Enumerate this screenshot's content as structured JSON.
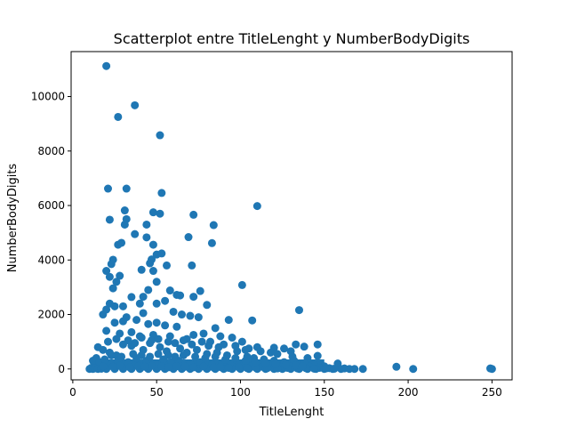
{
  "chart_data": {
    "type": "scatter",
    "title": "Scatterplot entre TitleLenght y NumberBodyDigits",
    "xlabel": "TitleLenght",
    "ylabel": "NumberBodyDigits",
    "xlim": [
      -1,
      262
    ],
    "ylim": [
      -400,
      11650
    ],
    "xticks": [
      0,
      50,
      100,
      150,
      200,
      250
    ],
    "yticks": [
      0,
      2000,
      4000,
      6000,
      8000,
      10000
    ],
    "grid": false,
    "legend": "none",
    "color": "#1f77b4",
    "points": [
      [
        20,
        11120
      ],
      [
        37,
        9680
      ],
      [
        27,
        9250
      ],
      [
        52,
        8580
      ],
      [
        21,
        6620
      ],
      [
        32,
        6620
      ],
      [
        53,
        6460
      ],
      [
        110,
        5980
      ],
      [
        22,
        5480
      ],
      [
        31,
        5820
      ],
      [
        32,
        5500
      ],
      [
        31,
        5300
      ],
      [
        48,
        5750
      ],
      [
        52,
        5700
      ],
      [
        44,
        5300
      ],
      [
        72,
        5660
      ],
      [
        84,
        5280
      ],
      [
        37,
        4950
      ],
      [
        44,
        4830
      ],
      [
        27,
        4560
      ],
      [
        29,
        4630
      ],
      [
        48,
        4560
      ],
      [
        69,
        4840
      ],
      [
        83,
        4620
      ],
      [
        24,
        4010
      ],
      [
        23,
        3850
      ],
      [
        20,
        3600
      ],
      [
        22,
        3380
      ],
      [
        26,
        3200
      ],
      [
        28,
        3420
      ],
      [
        47,
        4020
      ],
      [
        50,
        4200
      ],
      [
        53,
        4240
      ],
      [
        46,
        3880
      ],
      [
        56,
        3800
      ],
      [
        71,
        3800
      ],
      [
        41,
        3640
      ],
      [
        48,
        3600
      ],
      [
        50,
        3200
      ],
      [
        24,
        2960
      ],
      [
        35,
        2640
      ],
      [
        42,
        2650
      ],
      [
        45,
        2900
      ],
      [
        58,
        2880
      ],
      [
        62,
        2720
      ],
      [
        76,
        2860
      ],
      [
        101,
        3080
      ],
      [
        22,
        2400
      ],
      [
        25,
        2300
      ],
      [
        30,
        2300
      ],
      [
        40,
        2400
      ],
      [
        50,
        2400
      ],
      [
        55,
        2500
      ],
      [
        64,
        2700
      ],
      [
        72,
        2650
      ],
      [
        80,
        2350
      ],
      [
        135,
        2160
      ],
      [
        18,
        2000
      ],
      [
        20,
        2180
      ],
      [
        32,
        1900
      ],
      [
        42,
        2050
      ],
      [
        60,
        2100
      ],
      [
        65,
        2000
      ],
      [
        70,
        1950
      ],
      [
        75,
        1900
      ],
      [
        93,
        1800
      ],
      [
        107,
        1780
      ],
      [
        85,
        1500
      ],
      [
        25,
        1700
      ],
      [
        30,
        1750
      ],
      [
        38,
        1800
      ],
      [
        45,
        1650
      ],
      [
        50,
        1700
      ],
      [
        55,
        1600
      ],
      [
        62,
        1550
      ],
      [
        78,
        1300
      ],
      [
        88,
        1200
      ],
      [
        95,
        1150
      ],
      [
        101,
        1000
      ],
      [
        20,
        1400
      ],
      [
        28,
        1300
      ],
      [
        35,
        1350
      ],
      [
        40,
        1200
      ],
      [
        48,
        1250
      ],
      [
        58,
        1200
      ],
      [
        68,
        1100
      ],
      [
        72,
        1250
      ],
      [
        82,
        1000
      ],
      [
        90,
        900
      ],
      [
        105,
        750
      ],
      [
        110,
        800
      ],
      [
        112,
        650
      ],
      [
        120,
        780
      ],
      [
        126,
        750
      ],
      [
        133,
        900
      ],
      [
        138,
        820
      ],
      [
        146,
        900
      ],
      [
        118,
        600
      ],
      [
        122,
        550
      ],
      [
        131,
        450
      ],
      [
        140,
        400
      ],
      [
        146,
        480
      ],
      [
        130,
        650
      ],
      [
        15,
        800
      ],
      [
        18,
        700
      ],
      [
        22,
        600
      ],
      [
        26,
        500
      ],
      [
        30,
        900
      ],
      [
        35,
        850
      ],
      [
        42,
        700
      ],
      [
        46,
        950
      ],
      [
        52,
        800
      ],
      [
        56,
        650
      ],
      [
        64,
        750
      ],
      [
        68,
        600
      ],
      [
        74,
        700
      ],
      [
        80,
        550
      ],
      [
        86,
        600
      ],
      [
        92,
        500
      ],
      [
        98,
        650
      ],
      [
        104,
        450
      ],
      [
        108,
        400
      ],
      [
        114,
        350
      ],
      [
        120,
        300
      ],
      [
        126,
        250
      ],
      [
        132,
        300
      ],
      [
        138,
        200
      ],
      [
        144,
        150
      ],
      [
        150,
        100
      ],
      [
        12,
        300
      ],
      [
        14,
        400
      ],
      [
        16,
        250
      ],
      [
        19,
        350
      ],
      [
        23,
        200
      ],
      [
        27,
        300
      ],
      [
        33,
        250
      ],
      [
        38,
        400
      ],
      [
        44,
        300
      ],
      [
        49,
        200
      ],
      [
        54,
        350
      ],
      [
        59,
        250
      ],
      [
        63,
        300
      ],
      [
        70,
        200
      ],
      [
        76,
        250
      ],
      [
        83,
        150
      ],
      [
        89,
        200
      ],
      [
        95,
        100
      ],
      [
        102,
        150
      ],
      [
        107,
        100
      ],
      [
        113,
        80
      ],
      [
        118,
        120
      ],
      [
        124,
        60
      ],
      [
        129,
        100
      ],
      [
        135,
        50
      ],
      [
        141,
        80
      ],
      [
        147,
        40
      ],
      [
        153,
        30
      ],
      [
        158,
        200
      ],
      [
        162,
        20
      ],
      [
        10,
        0
      ],
      [
        11,
        40
      ],
      [
        12,
        0
      ],
      [
        13,
        20
      ],
      [
        15,
        0
      ],
      [
        17,
        10
      ],
      [
        20,
        0
      ],
      [
        25,
        0
      ],
      [
        30,
        0
      ],
      [
        35,
        0
      ],
      [
        40,
        0
      ],
      [
        45,
        0
      ],
      [
        50,
        0
      ],
      [
        55,
        0
      ],
      [
        60,
        0
      ],
      [
        65,
        0
      ],
      [
        70,
        0
      ],
      [
        75,
        0
      ],
      [
        80,
        0
      ],
      [
        85,
        0
      ],
      [
        90,
        0
      ],
      [
        95,
        0
      ],
      [
        100,
        0
      ],
      [
        105,
        0
      ],
      [
        110,
        0
      ],
      [
        115,
        0
      ],
      [
        120,
        0
      ],
      [
        125,
        0
      ],
      [
        130,
        0
      ],
      [
        135,
        0
      ],
      [
        140,
        0
      ],
      [
        145,
        0
      ],
      [
        150,
        0
      ],
      [
        155,
        0
      ],
      [
        160,
        0
      ],
      [
        165,
        0
      ],
      [
        168,
        0
      ],
      [
        173,
        0
      ],
      [
        193,
        80
      ],
      [
        203,
        0
      ],
      [
        249,
        20
      ],
      [
        250,
        0
      ],
      [
        18,
        100
      ],
      [
        24,
        80
      ],
      [
        28,
        120
      ],
      [
        34,
        60
      ],
      [
        39,
        100
      ],
      [
        43,
        80
      ],
      [
        47,
        120
      ],
      [
        53,
        90
      ],
      [
        57,
        60
      ],
      [
        62,
        100
      ],
      [
        67,
        80
      ],
      [
        72,
        60
      ],
      [
        78,
        90
      ],
      [
        84,
        50
      ],
      [
        88,
        70
      ],
      [
        93,
        40
      ],
      [
        99,
        60
      ],
      [
        104,
        30
      ],
      [
        109,
        50
      ],
      [
        116,
        30
      ],
      [
        122,
        20
      ],
      [
        128,
        40
      ],
      [
        134,
        20
      ],
      [
        139,
        30
      ],
      [
        144,
        10
      ],
      [
        151,
        20
      ],
      [
        156,
        10
      ],
      [
        21,
        1000
      ],
      [
        26,
        1100
      ],
      [
        33,
        1050
      ],
      [
        37,
        950
      ],
      [
        41,
        1150
      ],
      [
        47,
        1050
      ],
      [
        51,
        1100
      ],
      [
        57,
        1000
      ],
      [
        61,
        950
      ],
      [
        66,
        1050
      ],
      [
        71,
        900
      ],
      [
        77,
        1000
      ],
      [
        81,
        850
      ],
      [
        87,
        800
      ],
      [
        97,
        850
      ],
      [
        103,
        700
      ],
      [
        23,
        500
      ],
      [
        29,
        450
      ],
      [
        36,
        550
      ],
      [
        41,
        500
      ],
      [
        46,
        450
      ],
      [
        51,
        550
      ],
      [
        57,
        500
      ],
      [
        61,
        450
      ],
      [
        66,
        500
      ],
      [
        73,
        450
      ],
      [
        79,
        400
      ],
      [
        85,
        450
      ],
      [
        91,
        350
      ],
      [
        97,
        400
      ],
      [
        103,
        300
      ],
      [
        109,
        250
      ],
      [
        115,
        200
      ],
      [
        121,
        180
      ],
      [
        127,
        150
      ],
      [
        133,
        130
      ],
      [
        137,
        100
      ]
    ]
  }
}
